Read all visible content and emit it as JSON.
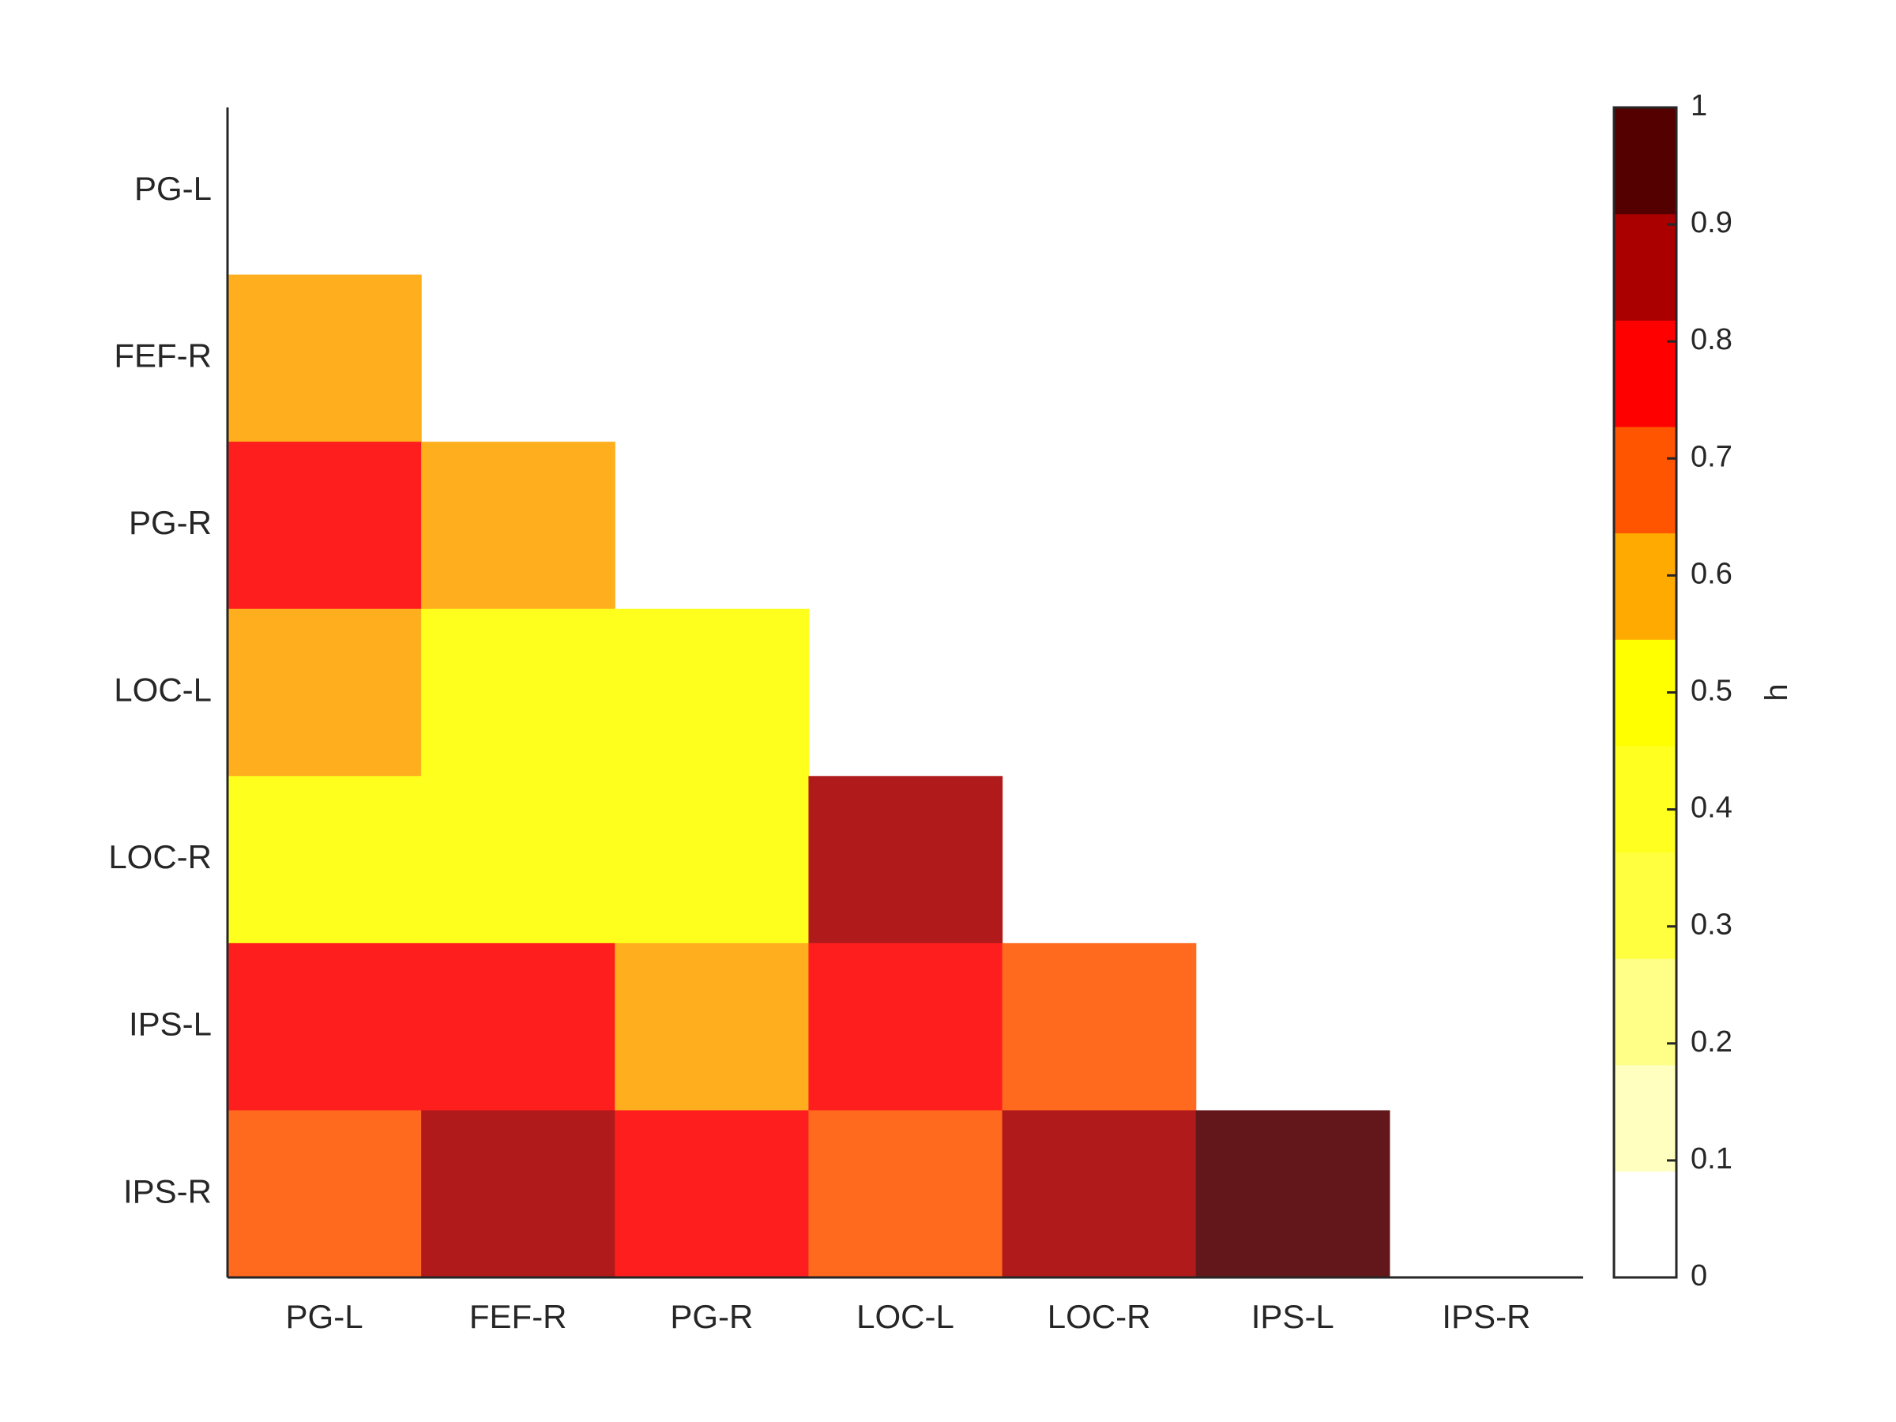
{
  "chart_data": {
    "type": "heatmap",
    "title": "",
    "xlabel": "",
    "ylabel": "",
    "rows": [
      "PG-L",
      "FEF-R",
      "PG-R",
      "LOC-L",
      "LOC-R",
      "IPS-L",
      "IPS-R"
    ],
    "columns": [
      "PG-L",
      "FEF-R",
      "PG-R",
      "LOC-L",
      "LOC-R",
      "IPS-L",
      "IPS-R"
    ],
    "values": [
      [
        null,
        null,
        null,
        null,
        null,
        null,
        null
      ],
      [
        0.55,
        null,
        null,
        null,
        null,
        null,
        null
      ],
      [
        0.75,
        0.55,
        null,
        null,
        null,
        null,
        null
      ],
      [
        0.55,
        0.45,
        0.45,
        null,
        null,
        null,
        null
      ],
      [
        0.45,
        0.45,
        0.45,
        0.85,
        null,
        null,
        null
      ],
      [
        0.75,
        0.75,
        0.55,
        0.75,
        0.65,
        null,
        null
      ],
      [
        0.65,
        0.85,
        0.75,
        0.65,
        0.85,
        0.95,
        null
      ]
    ],
    "colorbar": {
      "label": "h",
      "range": [
        0,
        1
      ],
      "ticks": [
        "0",
        "0.1",
        "0.2",
        "0.3",
        "0.4",
        "0.5",
        "0.6",
        "0.7",
        "0.8",
        "0.9",
        "1"
      ],
      "colors": [
        "#ffffff",
        "#ffffc0",
        "#ffff88",
        "#ffff40",
        "#ffff20",
        "#ffff00",
        "#ffaa00",
        "#ff5500",
        "#ff0000",
        "#aa0000",
        "#550000"
      ]
    },
    "cell_colors": {
      "0.45": "#ffff1e",
      "0.55": "#ffae1e",
      "0.65": "#ff6a1e",
      "0.75": "#ff1e1e",
      "0.85": "#b01a1a",
      "0.95": "#64171a"
    },
    "grid": false
  }
}
